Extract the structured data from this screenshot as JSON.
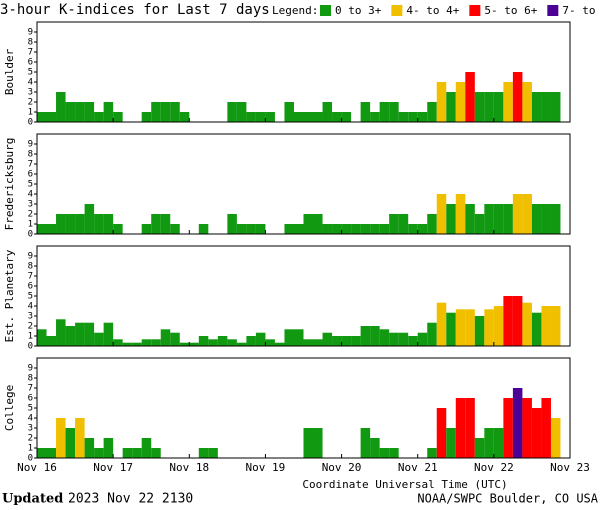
{
  "title": "3-hour K-indices for Last 7 days",
  "legend": {
    "label": "Legend:",
    "items": [
      {
        "name": "0 to 3+",
        "color": "#119911"
      },
      {
        "name": "4- to 4+",
        "color": "#f0c000"
      },
      {
        "name": "5- to 6+",
        "color": "#ff0000"
      },
      {
        "name": "7- to 9",
        "color": "#4b0096"
      }
    ]
  },
  "day_labels": [
    "Nov 16",
    "Nov 17",
    "Nov 18",
    "Nov 19",
    "Nov 20",
    "Nov 21",
    "Nov 22",
    "Nov 23"
  ],
  "x_label": "Coordinate Universal Time (UTC)",
  "footer": {
    "updated_label": "Updated",
    "updated": "2023 Nov 22 2130",
    "source": "NOAA/SWPC Boulder, CO USA"
  },
  "chart_data": [
    {
      "type": "bar",
      "title": "Boulder",
      "ylim": [
        0,
        10
      ],
      "yticks": [
        0,
        1,
        2,
        3,
        4,
        5,
        6,
        7,
        8,
        9
      ],
      "values": [
        1,
        1,
        3,
        2,
        2,
        2,
        1,
        2,
        1,
        0,
        0,
        1,
        2,
        2,
        2,
        1,
        0,
        0,
        0,
        0,
        2,
        2,
        1,
        1,
        1,
        0,
        2,
        1,
        1,
        1,
        2,
        1,
        1,
        0,
        2,
        1,
        2,
        2,
        1,
        1,
        1,
        2,
        4,
        3,
        4,
        5,
        3,
        3,
        3,
        4,
        5,
        4,
        3,
        3,
        3,
        0
      ],
      "colors": [
        "#119911",
        "#119911",
        "#119911",
        "#119911",
        "#119911",
        "#119911",
        "#119911",
        "#119911",
        "#119911",
        "#119911",
        "#119911",
        "#119911",
        "#119911",
        "#119911",
        "#119911",
        "#119911",
        "#119911",
        "#119911",
        "#119911",
        "#119911",
        "#119911",
        "#119911",
        "#119911",
        "#119911",
        "#119911",
        "#119911",
        "#119911",
        "#119911",
        "#119911",
        "#119911",
        "#119911",
        "#119911",
        "#119911",
        "#119911",
        "#119911",
        "#119911",
        "#119911",
        "#119911",
        "#119911",
        "#119911",
        "#119911",
        "#119911",
        "#f0c000",
        "#119911",
        "#f0c000",
        "#ff0000",
        "#119911",
        "#119911",
        "#119911",
        "#f0c000",
        "#ff0000",
        "#f0c000",
        "#119911",
        "#119911",
        "#119911",
        "#119911"
      ]
    },
    {
      "type": "bar",
      "title": "Fredericksburg",
      "ylim": [
        0,
        10
      ],
      "yticks": [
        0,
        1,
        2,
        3,
        4,
        5,
        6,
        7,
        8,
        9
      ],
      "values": [
        1,
        1,
        2,
        2,
        2,
        3,
        2,
        2,
        1,
        0,
        0,
        1,
        2,
        2,
        1,
        0,
        0,
        1,
        0,
        0,
        2,
        1,
        1,
        1,
        0,
        0,
        1,
        1,
        2,
        2,
        1,
        1,
        1,
        1,
        1,
        1,
        1,
        2,
        2,
        1,
        1,
        2,
        4,
        3,
        4,
        3,
        2,
        3,
        3,
        3,
        4,
        4,
        3,
        3,
        3,
        0
      ],
      "colors": [
        "#119911",
        "#119911",
        "#119911",
        "#119911",
        "#119911",
        "#119911",
        "#119911",
        "#119911",
        "#119911",
        "#119911",
        "#119911",
        "#119911",
        "#119911",
        "#119911",
        "#119911",
        "#119911",
        "#119911",
        "#119911",
        "#119911",
        "#119911",
        "#119911",
        "#119911",
        "#119911",
        "#119911",
        "#119911",
        "#119911",
        "#119911",
        "#119911",
        "#119911",
        "#119911",
        "#119911",
        "#119911",
        "#119911",
        "#119911",
        "#119911",
        "#119911",
        "#119911",
        "#119911",
        "#119911",
        "#119911",
        "#119911",
        "#119911",
        "#f0c000",
        "#119911",
        "#f0c000",
        "#119911",
        "#119911",
        "#119911",
        "#119911",
        "#119911",
        "#f0c000",
        "#f0c000",
        "#119911",
        "#119911",
        "#119911",
        "#119911"
      ]
    },
    {
      "type": "bar",
      "title": "Est. Planetary",
      "ylim": [
        0,
        10
      ],
      "yticks": [
        0,
        1,
        2,
        3,
        4,
        5,
        6,
        7,
        8,
        9
      ],
      "values": [
        1.67,
        1,
        2.67,
        2,
        2.33,
        2.33,
        1.33,
        2.33,
        0.67,
        0.33,
        0.33,
        0.67,
        0.67,
        1.67,
        1.33,
        0.33,
        0.33,
        1,
        0.67,
        1,
        0.67,
        0.33,
        1,
        1.33,
        0.67,
        0.33,
        1.67,
        1.67,
        0.67,
        0.67,
        1.33,
        1,
        1,
        1,
        2,
        2,
        1.67,
        1.33,
        1.33,
        1,
        1.33,
        2.33,
        4.33,
        3.33,
        3.67,
        3.67,
        3,
        3.67,
        4,
        5,
        5,
        4.33,
        3.33,
        4,
        4,
        0
      ],
      "colors": [
        "#119911",
        "#119911",
        "#119911",
        "#119911",
        "#119911",
        "#119911",
        "#119911",
        "#119911",
        "#119911",
        "#119911",
        "#119911",
        "#119911",
        "#119911",
        "#119911",
        "#119911",
        "#119911",
        "#119911",
        "#119911",
        "#119911",
        "#119911",
        "#119911",
        "#119911",
        "#119911",
        "#119911",
        "#119911",
        "#119911",
        "#119911",
        "#119911",
        "#119911",
        "#119911",
        "#119911",
        "#119911",
        "#119911",
        "#119911",
        "#119911",
        "#119911",
        "#119911",
        "#119911",
        "#119911",
        "#119911",
        "#119911",
        "#119911",
        "#f0c000",
        "#119911",
        "#f0c000",
        "#f0c000",
        "#119911",
        "#f0c000",
        "#f0c000",
        "#ff0000",
        "#ff0000",
        "#f0c000",
        "#119911",
        "#f0c000",
        "#f0c000",
        "#119911"
      ]
    },
    {
      "type": "bar",
      "title": "College",
      "ylim": [
        0,
        10
      ],
      "yticks": [
        0,
        1,
        2,
        3,
        4,
        5,
        6,
        7,
        8,
        9
      ],
      "values": [
        1,
        1,
        4,
        3,
        4,
        2,
        1,
        2,
        0,
        1,
        1,
        2,
        1,
        0,
        0,
        0,
        0,
        1,
        1,
        0,
        0,
        0,
        0,
        0,
        0,
        0,
        0,
        0,
        3,
        3,
        0,
        0,
        0,
        0,
        3,
        2,
        1,
        1,
        0,
        0,
        0,
        1,
        5,
        3,
        6,
        6,
        2,
        3,
        3,
        6,
        7,
        6,
        5,
        6,
        4,
        0
      ],
      "colors": [
        "#119911",
        "#119911",
        "#f0c000",
        "#119911",
        "#f0c000",
        "#119911",
        "#119911",
        "#119911",
        "#119911",
        "#119911",
        "#119911",
        "#119911",
        "#119911",
        "#119911",
        "#119911",
        "#119911",
        "#119911",
        "#119911",
        "#119911",
        "#119911",
        "#119911",
        "#119911",
        "#119911",
        "#119911",
        "#119911",
        "#119911",
        "#119911",
        "#119911",
        "#119911",
        "#119911",
        "#119911",
        "#119911",
        "#119911",
        "#119911",
        "#119911",
        "#119911",
        "#119911",
        "#119911",
        "#119911",
        "#119911",
        "#119911",
        "#119911",
        "#ff0000",
        "#119911",
        "#ff0000",
        "#ff0000",
        "#119911",
        "#119911",
        "#119911",
        "#ff0000",
        "#4b0096",
        "#ff0000",
        "#ff0000",
        "#ff0000",
        "#f0c000",
        "#119911"
      ]
    }
  ]
}
